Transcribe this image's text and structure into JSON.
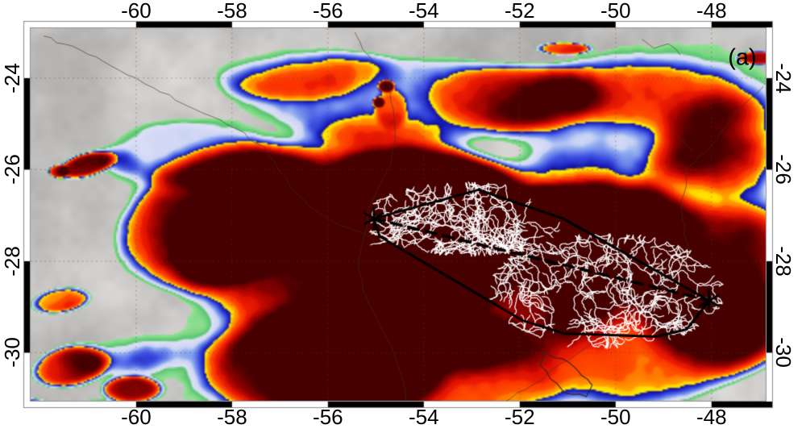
{
  "figure": {
    "panel_label": "(a)"
  },
  "axes": {
    "x_tick_labels": [
      "-60",
      "-58",
      "-56",
      "-54",
      "-52",
      "-50",
      "-48"
    ],
    "x_tick_values": [
      -60,
      -58,
      -56,
      -54,
      -52,
      -50,
      -48
    ],
    "y_tick_labels": [
      "-24",
      "-26",
      "-28",
      "-30"
    ],
    "y_tick_values": [
      -24,
      -26,
      -28,
      -30
    ],
    "lon_range": [
      -62.2,
      -46.87
    ],
    "lat_range": [
      -31.05,
      -22.91
    ],
    "grid_style": "dotted"
  },
  "features": {
    "track": {
      "style": "dashed",
      "color": "#000000",
      "start": {
        "lon": -55.04,
        "lat": -27.07
      },
      "end": {
        "lon": -48.05,
        "lat": -28.86
      }
    },
    "markers": [
      {
        "symbol": "asterisk",
        "lon": -55.04,
        "lat": -27.07
      },
      {
        "symbol": "asterisk",
        "lon": -48.05,
        "lat": -28.86
      }
    ],
    "hull": {
      "color": "#000000",
      "vertices_lonlat": [
        [
          -55.04,
          -27.07
        ],
        [
          -52.86,
          -26.44
        ],
        [
          -51.09,
          -27.07
        ],
        [
          -48.05,
          -28.86
        ],
        [
          -48.52,
          -29.49
        ],
        [
          -49.16,
          -29.65
        ],
        [
          -51.06,
          -29.58
        ],
        [
          -51.93,
          -29.3
        ],
        [
          -54.92,
          -27.46
        ]
      ]
    },
    "lightning": {
      "color": "#ffffff",
      "clusters": [
        {
          "lon": -53.03,
          "lat": -27.08,
          "sx": 1.93,
          "sy": 0.67,
          "flashes": 16
        },
        {
          "lon": -50.19,
          "lat": -28.65,
          "sx": 2.1,
          "sy": 1.06,
          "flashes": 17
        }
      ]
    }
  },
  "palette": {
    "gray_base": "#c8c6c4",
    "land_line": "#40301e",
    "stops": [
      [
        0.3,
        150,
        226,
        150
      ],
      [
        0.356,
        84,
        196,
        108
      ],
      [
        0.372,
        224,
        226,
        246
      ],
      [
        0.426,
        204,
        212,
        244
      ],
      [
        0.442,
        148,
        176,
        240
      ],
      [
        0.5,
        64,
        84,
        228
      ],
      [
        0.545,
        26,
        30,
        186
      ],
      [
        0.562,
        14,
        14,
        148
      ],
      [
        0.567,
        255,
        238,
        0
      ],
      [
        0.598,
        255,
        208,
        0
      ],
      [
        0.602,
        255,
        164,
        0
      ],
      [
        0.652,
        255,
        118,
        0
      ],
      [
        0.658,
        255,
        84,
        0
      ],
      [
        0.728,
        250,
        46,
        2
      ],
      [
        0.734,
        238,
        30,
        3
      ],
      [
        0.798,
        217,
        17,
        2
      ],
      [
        0.804,
        199,
        10,
        1
      ],
      [
        0.873,
        153,
        3,
        0
      ],
      [
        0.879,
        140,
        2,
        0
      ],
      [
        0.938,
        113,
        0,
        0
      ],
      [
        0.944,
        96,
        0,
        0
      ],
      [
        1.0,
        70,
        0,
        0
      ]
    ]
  },
  "satellite_blobs": [
    [
      -55.64,
      -27.58,
      3.86,
      2.64,
      0.95,
      -10
    ],
    [
      -52.46,
      -28.11,
      3.86,
      2.29,
      0.92,
      -15
    ],
    [
      -58.32,
      -27.05,
      2.51,
      1.59,
      0.88,
      -20
    ],
    [
      -54.1,
      -26.5,
      2.2,
      1.1,
      0.73,
      0
    ],
    [
      -50.6,
      -27.3,
      2.5,
      1.15,
      0.75,
      -5
    ],
    [
      -49.1,
      -29.69,
      3.02,
      1.76,
      0.67,
      -15
    ],
    [
      -56.2,
      -30.3,
      2.7,
      1.35,
      0.78,
      0
    ],
    [
      -47.6,
      -28.6,
      2.2,
      2.0,
      0.62,
      0
    ],
    [
      -53.5,
      -30.6,
      2.6,
      1.5,
      0.66,
      0
    ],
    [
      -57.65,
      -27.4,
      1.17,
      0.79,
      0.2,
      0
    ],
    [
      -56.14,
      -27.84,
      0.92,
      0.67,
      0.18,
      0
    ],
    [
      -53.37,
      -26.43,
      0.8,
      0.56,
      0.2,
      0
    ],
    [
      -52.37,
      -27.58,
      1.26,
      0.85,
      0.2,
      0
    ],
    [
      -51.58,
      -26.78,
      0.75,
      0.49,
      0.18,
      0
    ],
    [
      -51.11,
      -28.19,
      1.0,
      0.7,
      0.16,
      0
    ],
    [
      -54.68,
      -24.67,
      0.37,
      0.49,
      0.22,
      0
    ],
    [
      -61.04,
      -25.9,
      0.64,
      0.28,
      0.66,
      -15
    ],
    [
      -61.63,
      -26.04,
      0.23,
      0.16,
      0.52,
      0
    ],
    [
      -61.59,
      -28.85,
      0.75,
      0.32,
      0.64,
      -10
    ],
    [
      -61.42,
      -30.31,
      0.92,
      0.49,
      0.68,
      -10
    ],
    [
      -60.08,
      -30.8,
      0.67,
      0.32,
      0.62,
      0
    ],
    [
      -62.43,
      -31.24,
      0.92,
      0.32,
      0.64,
      0
    ],
    [
      -54.78,
      -24.18,
      0.18,
      0.14,
      0.6,
      0
    ],
    [
      -54.94,
      -24.53,
      0.13,
      0.12,
      0.56,
      0
    ],
    [
      -51.11,
      -23.35,
      0.67,
      0.16,
      0.58,
      0
    ],
    [
      -47.0,
      -23.56,
      0.5,
      0.16,
      0.6,
      0
    ],
    [
      -54.47,
      -24.41,
      4.36,
      1.15,
      0.47,
      0
    ],
    [
      -49.6,
      -24.93,
      3.35,
      1.5,
      0.44,
      0
    ],
    [
      -47.93,
      -26.78,
      1.84,
      1.94,
      0.4,
      0
    ],
    [
      -58.99,
      -25.55,
      2.01,
      0.88,
      0.4,
      0
    ],
    [
      -60.84,
      -31.54,
      1.51,
      0.53,
      0.42,
      0
    ],
    [
      -58.16,
      -31.54,
      1.34,
      0.44,
      0.4,
      0
    ],
    [
      -48.77,
      -23.96,
      3.19,
      1.32,
      0.3,
      0
    ],
    [
      -47.76,
      -25.46,
      1.51,
      1.23,
      0.3,
      0
    ],
    [
      -56.81,
      -23.79,
      2.18,
      0.79,
      0.28,
      0
    ],
    [
      -52.12,
      -24.41,
      2.01,
      0.79,
      0.3,
      0
    ],
    [
      -57.82,
      -30.75,
      4.36,
      1.23,
      0.3,
      0
    ],
    [
      -60.34,
      -29.6,
      2.01,
      0.97,
      0.28,
      0
    ],
    [
      -61.0,
      -26.08,
      1.26,
      0.7,
      0.25,
      0
    ],
    [
      -60.84,
      -23.61,
      0.42,
      0.26,
      0.22,
      0
    ]
  ],
  "map_lines": [
    {
      "name": "river-parana",
      "closed": false,
      "pts": [
        [
          -61.93,
          -23.08
        ],
        [
          -61.17,
          -23.38
        ],
        [
          -60.0,
          -24.0
        ],
        [
          -58.99,
          -24.58
        ],
        [
          -57.9,
          -25.11
        ],
        [
          -57.32,
          -25.5
        ],
        [
          -56.81,
          -26.34
        ],
        [
          -56.23,
          -26.91
        ],
        [
          -55.81,
          -27.19
        ],
        [
          -55.1,
          -27.49
        ]
      ]
    },
    {
      "name": "river-uruguay",
      "closed": false,
      "pts": [
        [
          -55.44,
          -23.0
        ],
        [
          -55.27,
          -23.38
        ],
        [
          -54.77,
          -23.96
        ],
        [
          -54.69,
          -24.49
        ],
        [
          -54.59,
          -25.32
        ],
        [
          -54.69,
          -25.9
        ],
        [
          -54.97,
          -26.43
        ],
        [
          -55.17,
          -26.96
        ],
        [
          -55.27,
          -27.58
        ],
        [
          -55.37,
          -28.11
        ],
        [
          -55.27,
          -28.63
        ],
        [
          -54.97,
          -29.25
        ],
        [
          -54.67,
          -29.87
        ],
        [
          -54.47,
          -30.48
        ],
        [
          -54.38,
          -31.05
        ]
      ]
    },
    {
      "name": "coastline-atlantic",
      "closed": false,
      "pts": [
        [
          -46.92,
          -24.18
        ],
        [
          -47.51,
          -24.76
        ],
        [
          -47.88,
          -25.34
        ],
        [
          -48.48,
          -25.94
        ],
        [
          -48.63,
          -26.7
        ],
        [
          -48.57,
          -27.4
        ],
        [
          -48.43,
          -27.93
        ],
        [
          -49.1,
          -28.63
        ],
        [
          -49.77,
          -29.25
        ],
        [
          -50.27,
          -29.57
        ],
        [
          -51.11,
          -30.22
        ],
        [
          -51.87,
          -30.8
        ],
        [
          -52.37,
          -31.1
        ]
      ]
    },
    {
      "name": "lagoon-outline",
      "closed": true,
      "pts": [
        [
          -51.5,
          -29.99
        ],
        [
          -51.11,
          -30.13
        ],
        [
          -50.78,
          -30.4
        ],
        [
          -50.49,
          -30.71
        ],
        [
          -50.61,
          -30.96
        ],
        [
          -51.03,
          -30.89
        ],
        [
          -51.36,
          -30.57
        ],
        [
          -51.58,
          -30.26
        ]
      ]
    },
    {
      "name": "river-squiggle-ne1",
      "closed": false,
      "pts": [
        [
          -49.45,
          -23.15
        ],
        [
          -49.2,
          -23.35
        ],
        [
          -48.9,
          -23.25
        ],
        [
          -48.65,
          -23.5
        ]
      ]
    },
    {
      "name": "river-squiggle-ne2",
      "closed": false,
      "pts": [
        [
          -48.85,
          -25.15
        ],
        [
          -48.6,
          -25.35
        ],
        [
          -48.4,
          -25.6
        ]
      ]
    }
  ]
}
